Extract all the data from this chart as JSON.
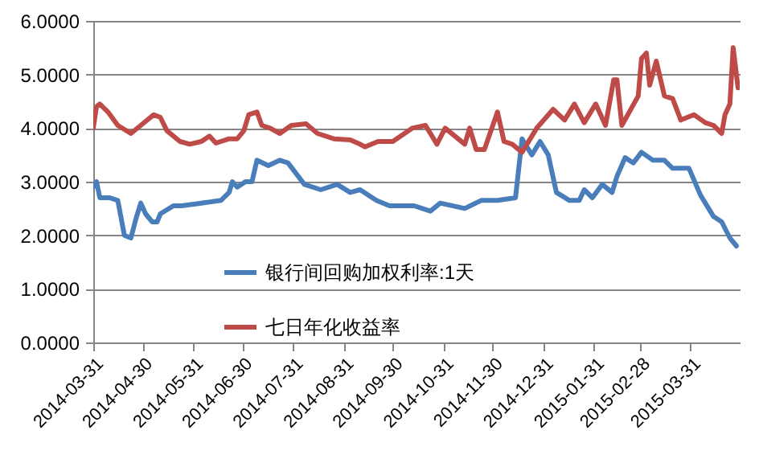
{
  "chart_data": {
    "type": "line",
    "legend": "bottom",
    "grid": "y",
    "line_style": "solid",
    "xlim": [
      "2014-03-31",
      "2015-04-30"
    ],
    "xticks": [
      "2014-03-31",
      "2014-04-30",
      "2014-05-31",
      "2014-06-30",
      "2014-07-31",
      "2014-08-31",
      "2014-09-30",
      "2014-10-31",
      "2014-11-30",
      "2014-12-31",
      "2015-01-31",
      "2015-02-28",
      "2015-03-31"
    ],
    "ylim": [
      0,
      6
    ],
    "yticks": [
      {
        "value": 0,
        "label": "0.0000"
      },
      {
        "value": 1,
        "label": "1.0000"
      },
      {
        "value": 2,
        "label": "2.0000"
      },
      {
        "value": 3,
        "label": "3.0000"
      },
      {
        "value": 4,
        "label": "4.0000"
      },
      {
        "value": 5,
        "label": "5.0000"
      },
      {
        "value": 6,
        "label": "6.0000"
      }
    ],
    "series": [
      {
        "name": "银行间回购加权利率:1天",
        "color": "#4a7ebb",
        "x": [
          "2014-03-31",
          "2014-04-02",
          "2014-04-04",
          "2014-04-10",
          "2014-04-15",
          "2014-04-19",
          "2014-04-23",
          "2014-04-26",
          "2014-04-29",
          "2014-05-02",
          "2014-05-06",
          "2014-05-09",
          "2014-05-11",
          "2014-05-19",
          "2014-05-24",
          "2014-06-05",
          "2014-06-17",
          "2014-06-22",
          "2014-06-24",
          "2014-06-27",
          "2014-07-02",
          "2014-07-06",
          "2014-07-09",
          "2014-07-16",
          "2014-07-23",
          "2014-07-28",
          "2014-08-07",
          "2014-08-17",
          "2014-08-27",
          "2014-09-04",
          "2014-09-10",
          "2014-09-20",
          "2014-09-28",
          "2014-10-13",
          "2014-10-23",
          "2014-10-29",
          "2014-11-13",
          "2014-11-23",
          "2014-12-03",
          "2014-12-14",
          "2014-12-18",
          "2014-12-24",
          "2014-12-29",
          "2015-01-03",
          "2015-01-08",
          "2015-01-16",
          "2015-01-22",
          "2015-01-25",
          "2015-01-30",
          "2015-02-05",
          "2015-02-11",
          "2015-02-14",
          "2015-02-19",
          "2015-02-24",
          "2015-03-01",
          "2015-03-08",
          "2015-03-15",
          "2015-03-20",
          "2015-03-30",
          "2015-04-06",
          "2015-04-14",
          "2015-04-19",
          "2015-04-24",
          "2015-04-28"
        ],
        "values": [
          2.9,
          3.0,
          2.7,
          2.7,
          2.65,
          2.0,
          1.95,
          2.3,
          2.6,
          2.4,
          2.25,
          2.25,
          2.4,
          2.55,
          2.55,
          2.6,
          2.65,
          2.8,
          3.0,
          2.9,
          3.0,
          3.0,
          3.4,
          3.3,
          3.4,
          3.35,
          2.95,
          2.85,
          2.95,
          2.8,
          2.85,
          2.65,
          2.55,
          2.55,
          2.45,
          2.6,
          2.5,
          2.65,
          2.65,
          2.7,
          3.8,
          3.5,
          3.75,
          3.5,
          2.8,
          2.65,
          2.65,
          2.85,
          2.7,
          2.95,
          2.8,
          3.1,
          3.45,
          3.35,
          3.55,
          3.4,
          3.4,
          3.25,
          3.25,
          2.75,
          2.35,
          2.25,
          1.95,
          1.8
        ]
      },
      {
        "name": "七日年化收益率",
        "color": "#be4b48",
        "x": [
          "2014-03-31",
          "2014-04-02",
          "2014-04-04",
          "2014-04-09",
          "2014-04-15",
          "2014-04-23",
          "2014-04-29",
          "2014-05-07",
          "2014-05-11",
          "2014-05-15",
          "2014-05-23",
          "2014-05-29",
          "2014-06-05",
          "2014-06-10",
          "2014-06-14",
          "2014-06-22",
          "2014-06-27",
          "2014-07-01",
          "2014-07-04",
          "2014-07-09",
          "2014-07-12",
          "2014-07-17",
          "2014-07-23",
          "2014-07-30",
          "2014-08-08",
          "2014-08-15",
          "2014-08-25",
          "2014-09-04",
          "2014-09-10",
          "2014-09-13",
          "2014-09-21",
          "2014-09-30",
          "2014-10-12",
          "2014-10-20",
          "2014-10-27",
          "2014-11-01",
          "2014-11-13",
          "2014-11-16",
          "2014-11-20",
          "2014-11-25",
          "2014-12-03",
          "2014-12-07",
          "2014-12-12",
          "2014-12-18",
          "2014-12-27",
          "2015-01-06",
          "2015-01-13",
          "2015-01-19",
          "2015-01-25",
          "2015-02-01",
          "2015-02-07",
          "2015-02-12",
          "2015-02-14",
          "2015-02-17",
          "2015-02-27",
          "2015-03-01",
          "2015-03-04",
          "2015-03-06",
          "2015-03-10",
          "2015-03-15",
          "2015-03-20",
          "2015-03-25",
          "2015-04-02",
          "2015-04-09",
          "2015-04-14",
          "2015-04-19",
          "2015-04-21",
          "2015-04-24",
          "2015-04-26",
          "2015-04-29"
        ],
        "values": [
          4.0,
          4.4,
          4.45,
          4.3,
          4.05,
          3.9,
          4.05,
          4.25,
          4.2,
          3.95,
          3.75,
          3.7,
          3.75,
          3.85,
          3.72,
          3.8,
          3.8,
          3.95,
          4.25,
          4.3,
          4.05,
          4.0,
          3.9,
          4.05,
          4.08,
          3.9,
          3.8,
          3.78,
          3.7,
          3.65,
          3.75,
          3.75,
          4.0,
          4.05,
          3.7,
          4.0,
          3.7,
          4.0,
          3.6,
          3.6,
          4.3,
          3.75,
          3.7,
          3.55,
          4.0,
          4.35,
          4.15,
          4.45,
          4.1,
          4.45,
          4.05,
          4.9,
          4.9,
          4.05,
          4.6,
          5.3,
          5.4,
          4.8,
          5.25,
          4.6,
          4.55,
          4.15,
          4.25,
          4.1,
          4.05,
          3.9,
          4.25,
          4.45,
          5.5,
          4.75
        ]
      }
    ]
  }
}
